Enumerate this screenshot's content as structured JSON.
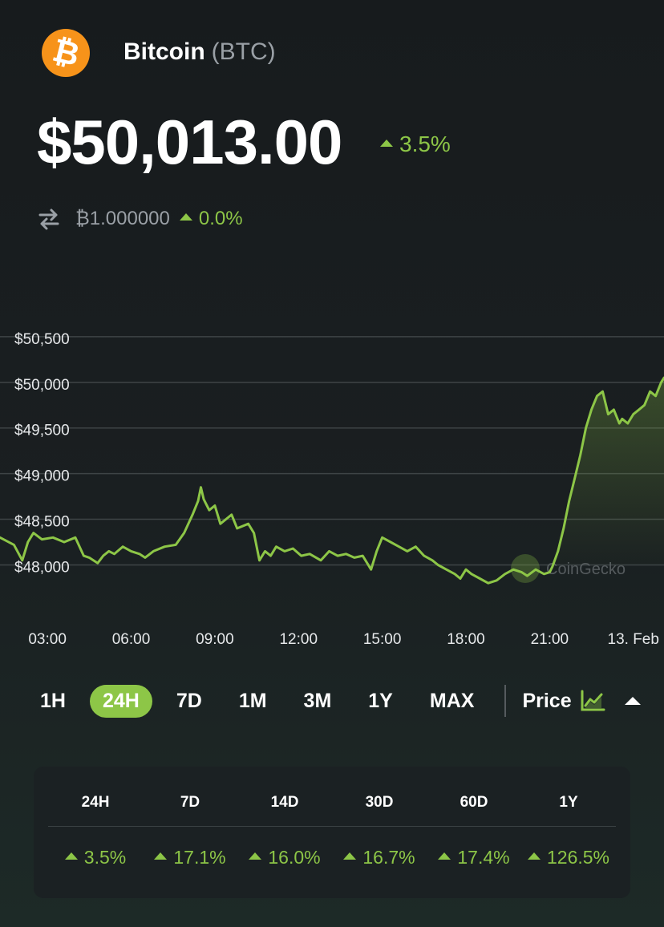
{
  "coin": {
    "logo_icon": "bitcoin-logo-icon",
    "logo_glyph": "₿",
    "name": "Bitcoin",
    "symbol": "(BTC)",
    "price": "$50,013.00",
    "change_24h": "3.5%",
    "btc_icon": "swap-arrows-icon",
    "btc_value": "₿1.000000",
    "btc_change": "0.0%"
  },
  "colors": {
    "accent_green": "#8dc647",
    "bitcoin_orange": "#f7931a",
    "background": "#171b1d",
    "muted_text": "#9aa0a6"
  },
  "chart_data": {
    "type": "line",
    "title": "",
    "xlabel": "",
    "ylabel": "",
    "y_ticks": [
      "$50,500",
      "$50,000",
      "$49,500",
      "$49,000",
      "$48,500",
      "$48,000"
    ],
    "y_tick_values": [
      50500,
      50000,
      49500,
      49000,
      48500,
      48000
    ],
    "x_ticks": [
      "03:00",
      "06:00",
      "09:00",
      "12:00",
      "15:00",
      "18:00",
      "21:00",
      "13. Feb"
    ],
    "x_tick_hours": [
      3,
      6,
      9,
      12,
      15,
      18,
      21,
      24
    ],
    "ylim": [
      47600,
      50850
    ],
    "xlim_hours": [
      1.3,
      25.1
    ],
    "grid": true,
    "watermark": "CoinGecko",
    "series": [
      {
        "color": "#8dc647",
        "x_hours": [
          1.3,
          1.8,
          2.1,
          2.3,
          2.5,
          2.8,
          3.2,
          3.6,
          4.0,
          4.3,
          4.5,
          4.8,
          5.0,
          5.2,
          5.4,
          5.7,
          6.0,
          6.3,
          6.5,
          6.8,
          7.2,
          7.6,
          7.9,
          8.2,
          8.4,
          8.5,
          8.6,
          8.8,
          9.0,
          9.2,
          9.4,
          9.6,
          9.8,
          10.2,
          10.4,
          10.6,
          10.8,
          11.0,
          11.2,
          11.5,
          11.8,
          12.1,
          12.4,
          12.8,
          13.1,
          13.4,
          13.7,
          14.0,
          14.3,
          14.6,
          14.8,
          15.0,
          15.3,
          15.6,
          15.9,
          16.2,
          16.5,
          16.8,
          17.0,
          17.3,
          17.6,
          17.8,
          18.0,
          18.2,
          18.5,
          18.8,
          19.1,
          19.4,
          19.7,
          20.0,
          20.2,
          20.5,
          20.8,
          21.0,
          21.1,
          21.3,
          21.5,
          21.7,
          21.9,
          22.1,
          22.3,
          22.5,
          22.7,
          22.9,
          23.1,
          23.3,
          23.5,
          23.6,
          23.8,
          24.0,
          24.2,
          24.4,
          24.6,
          24.8,
          25.0,
          25.1
        ],
        "y": [
          48300,
          48220,
          48050,
          48250,
          48350,
          48280,
          48300,
          48250,
          48300,
          48100,
          48080,
          48020,
          48100,
          48150,
          48120,
          48200,
          48150,
          48120,
          48080,
          48150,
          48200,
          48220,
          48350,
          48550,
          48700,
          48850,
          48720,
          48600,
          48650,
          48450,
          48500,
          48550,
          48400,
          48450,
          48350,
          48050,
          48150,
          48100,
          48200,
          48150,
          48180,
          48100,
          48120,
          48050,
          48150,
          48100,
          48120,
          48080,
          48100,
          47950,
          48150,
          48300,
          48250,
          48200,
          48150,
          48200,
          48100,
          48050,
          48000,
          47950,
          47900,
          47850,
          47950,
          47900,
          47850,
          47800,
          47830,
          47900,
          47950,
          47920,
          47880,
          47950,
          47900,
          47920,
          47980,
          48150,
          48400,
          48700,
          48950,
          49200,
          49500,
          49700,
          49850,
          49900,
          49650,
          49700,
          49550,
          49600,
          49550,
          49650,
          49700,
          49750,
          49900,
          49850,
          50000,
          50050
        ]
      }
    ]
  },
  "range_tabs": [
    "1H",
    "24H",
    "7D",
    "1M",
    "3M",
    "1Y",
    "MAX"
  ],
  "range_active_index": 1,
  "price_toggle": {
    "label": "Price",
    "chart_icon": "line-chart-icon",
    "caret_icon": "caret-up-icon"
  },
  "stats": {
    "headers": [
      "24H",
      "7D",
      "14D",
      "30D",
      "60D",
      "1Y"
    ],
    "values": [
      "3.5%",
      "17.1%",
      "16.0%",
      "16.7%",
      "17.4%",
      "126.5%"
    ]
  }
}
